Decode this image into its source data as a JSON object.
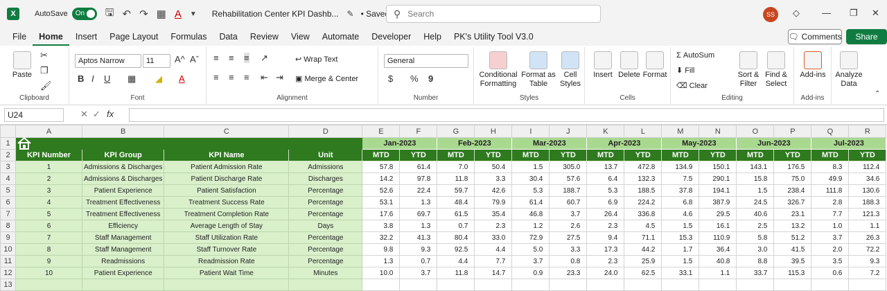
{
  "titlebar": {
    "app_logo": "X",
    "autosave_label": "AutoSave",
    "autosave_state": "On",
    "doc_title": "Rehabilitation Center KPI Dashb...",
    "saved_status": "• Saved",
    "search_placeholder": "Search",
    "user_initials": "SS",
    "icons": [
      "save-icon",
      "undo-icon",
      "redo-icon",
      "borders-icon",
      "font-color-icon",
      "diamond-icon",
      "minimize-icon",
      "restore-icon",
      "close-icon"
    ]
  },
  "menu": {
    "tabs": [
      "File",
      "Home",
      "Insert",
      "Page Layout",
      "Formulas",
      "Data",
      "Review",
      "View",
      "Automate",
      "Developer",
      "Help",
      "PK's Utility Tool V3.0"
    ],
    "active_tab": "Home",
    "comments_label": "Comments",
    "share_label": "Share"
  },
  "ribbon": {
    "clipboard": {
      "paste": "Paste",
      "label": "Clipboard"
    },
    "font": {
      "font_name": "Aptos Narrow",
      "font_size": "11",
      "bold": "B",
      "italic": "I",
      "underline": "U",
      "grow": "A^",
      "shrink": "Aˇ",
      "label": "Font"
    },
    "alignment": {
      "wrap": "Wrap Text",
      "merge": "Merge & Center",
      "label": "Alignment"
    },
    "number": {
      "format": "General",
      "currency": "$",
      "percent": "%",
      "comma": "9",
      "label": "Number"
    },
    "styles": {
      "conditional": "Conditional Formatting",
      "format_table": "Format as Table",
      "cell_styles": "Cell Styles",
      "label": "Styles"
    },
    "cells": {
      "insert": "Insert",
      "delete": "Delete",
      "format": "Format",
      "label": "Cells"
    },
    "editing": {
      "autosum": "AutoSum",
      "fill": "Fill",
      "clear": "Clear",
      "sort": "Sort & Filter",
      "find": "Find & Select",
      "label": "Editing"
    },
    "addins": {
      "addins": "Add-ins",
      "label": "Add-ins"
    },
    "analyze": {
      "analyze": "Analyze Data"
    }
  },
  "formula_bar": {
    "name_box": "U24",
    "fx": "fx",
    "formula": ""
  },
  "sheet": {
    "columns": [
      "A",
      "B",
      "C",
      "D",
      "E",
      "F",
      "G",
      "H",
      "I",
      "J",
      "K",
      "L",
      "M",
      "N",
      "O",
      "P",
      "Q",
      "R"
    ],
    "row_numbers": [
      "1",
      "2",
      "3",
      "4",
      "5",
      "6",
      "7",
      "8",
      "9",
      "10",
      "11",
      "12",
      "13"
    ],
    "months": [
      "Jan-2023",
      "Feb-2023",
      "Mar-2023",
      "Apr-2023",
      "May-2023",
      "Jun-2023",
      "Jul-2023"
    ],
    "headers": [
      "KPI Number",
      "KPI Group",
      "KPI Name",
      "Unit"
    ],
    "mtd_label": "MTD",
    "ytd_label": "YTD",
    "rows": [
      {
        "num": "1",
        "group": "Admissions & Discharges",
        "name": "Patient Admission Rate",
        "unit": "Admissions",
        "vals": [
          "57.8",
          "61.4",
          "7.0",
          "50.4",
          "1.5",
          "305.0",
          "13.7",
          "472.8",
          "134.9",
          "150.1",
          "143.1",
          "176.5",
          "8.3",
          "112.4"
        ]
      },
      {
        "num": "2",
        "group": "Admissions & Discharges",
        "name": "Patient Discharge Rate",
        "unit": "Discharges",
        "vals": [
          "14.2",
          "97.8",
          "11.8",
          "3.3",
          "30.4",
          "57.6",
          "6.4",
          "132.3",
          "7.5",
          "290.1",
          "15.8",
          "75.0",
          "49.9",
          "34.6"
        ]
      },
      {
        "num": "3",
        "group": "Patient Experience",
        "name": "Patient Satisfaction",
        "unit": "Percentage",
        "vals": [
          "52.6",
          "22.4",
          "59.7",
          "42.6",
          "5.3",
          "188.7",
          "5.3",
          "188.5",
          "37.8",
          "194.1",
          "1.5",
          "238.4",
          "111.8",
          "130.6"
        ]
      },
      {
        "num": "4",
        "group": "Treatment Effectiveness",
        "name": "Treatment Success Rate",
        "unit": "Percentage",
        "vals": [
          "53.1",
          "1.3",
          "48.4",
          "79.9",
          "61.4",
          "60.7",
          "6.9",
          "224.2",
          "6.8",
          "387.9",
          "24.5",
          "326.7",
          "2.8",
          "188.3"
        ]
      },
      {
        "num": "5",
        "group": "Treatment Effectiveness",
        "name": "Treatment Completion Rate",
        "unit": "Percentage",
        "vals": [
          "17.6",
          "69.7",
          "61.5",
          "35.4",
          "46.8",
          "3.7",
          "26.4",
          "336.8",
          "4.6",
          "29.5",
          "40.6",
          "23.1",
          "7.7",
          "121.3"
        ]
      },
      {
        "num": "6",
        "group": "Efficiency",
        "name": "Average Length of Stay",
        "unit": "Days",
        "vals": [
          "3.8",
          "1.3",
          "0.7",
          "2.3",
          "1.2",
          "2.6",
          "2.3",
          "4.5",
          "1.5",
          "16.1",
          "2.5",
          "13.2",
          "1.0",
          "1.1"
        ]
      },
      {
        "num": "7",
        "group": "Staff Management",
        "name": "Staff Utilization Rate",
        "unit": "Percentage",
        "vals": [
          "32.2",
          "41.3",
          "80.4",
          "33.0",
          "72.9",
          "27.5",
          "9.4",
          "71.1",
          "15.3",
          "110.9",
          "5.8",
          "51.2",
          "3.7",
          "26.3"
        ]
      },
      {
        "num": "8",
        "group": "Staff Management",
        "name": "Staff Turnover Rate",
        "unit": "Percentage",
        "vals": [
          "9.8",
          "9.3",
          "92.5",
          "4.4",
          "5.0",
          "3.3",
          "17.3",
          "44.2",
          "1.7",
          "36.4",
          "3.0",
          "41.5",
          "2.0",
          "72.2"
        ]
      },
      {
        "num": "9",
        "group": "Readmissions",
        "name": "Readmission Rate",
        "unit": "Percentage",
        "vals": [
          "1.3",
          "0.7",
          "4.4",
          "7.7",
          "3.7",
          "0.8",
          "2.3",
          "25.9",
          "1.5",
          "40.8",
          "8.8",
          "39.5",
          "3.5",
          "9.3"
        ]
      },
      {
        "num": "10",
        "group": "Patient Experience",
        "name": "Patient Wait Time",
        "unit": "Minutes",
        "vals": [
          "10.0",
          "3.7",
          "11.8",
          "14.7",
          "0.9",
          "23.3",
          "24.0",
          "62.5",
          "33.1",
          "1.1",
          "33.7",
          "115.3",
          "0.6",
          "7.2"
        ]
      }
    ]
  }
}
